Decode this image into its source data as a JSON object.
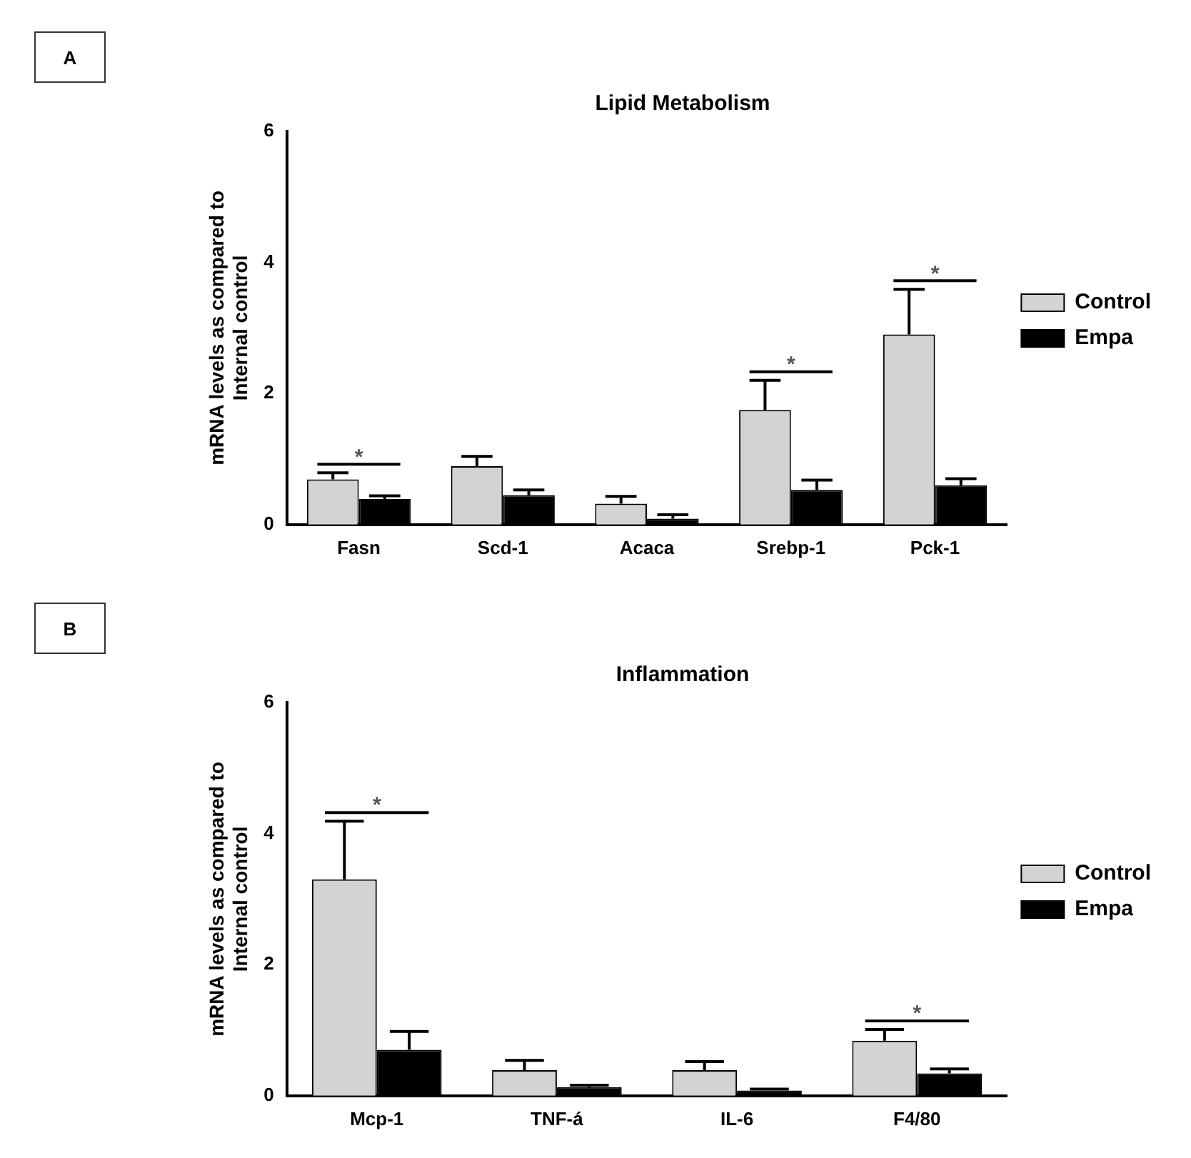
{
  "chart_data": [
    {
      "type": "bar",
      "title": "Lipid Metabolism",
      "ylabel": "mRNA levels as compared to Internal control",
      "categories": [
        "Fasn",
        "Scd-1",
        "Acaca",
        "Srebp-1",
        "Pck-1"
      ],
      "series": [
        {
          "name": "Control",
          "color": "#d3d3d3",
          "values": [
            0.69,
            0.89,
            0.32,
            1.75,
            2.9
          ],
          "errors": [
            0.1,
            0.15,
            0.11,
            0.45,
            0.69
          ]
        },
        {
          "name": "Empa",
          "color": "#000000",
          "values": [
            0.39,
            0.45,
            0.09,
            0.53,
            0.6
          ],
          "errors": [
            0.05,
            0.08,
            0.06,
            0.15,
            0.1
          ]
        }
      ],
      "ylim": [
        0,
        6
      ],
      "yticks": [
        0,
        2,
        4,
        6
      ],
      "grid": false,
      "legend": "right",
      "annotations": [
        "A",
        "*",
        "*",
        "*"
      ]
    },
    {
      "type": "bar",
      "title": "Inflammation",
      "ylabel": "mRNA levels as compared to Internal control",
      "categories": [
        "Mcp-1",
        "TNF-á",
        "IL-6",
        "F4/80"
      ],
      "series": [
        {
          "name": "Control",
          "color": "#d3d3d3",
          "values": [
            3.3,
            0.39,
            0.39,
            0.84
          ],
          "errors": [
            0.89,
            0.15,
            0.13,
            0.17
          ]
        },
        {
          "name": "Empa",
          "color": "#000000",
          "values": [
            0.7,
            0.13,
            0.08,
            0.34
          ],
          "errors": [
            0.28,
            0.03,
            0.02,
            0.07
          ]
        }
      ],
      "ylim": [
        0,
        6
      ],
      "yticks": [
        0,
        2,
        4,
        6
      ],
      "grid": false,
      "legend": "right",
      "annotations": [
        "B",
        "*",
        "*"
      ]
    }
  ]
}
